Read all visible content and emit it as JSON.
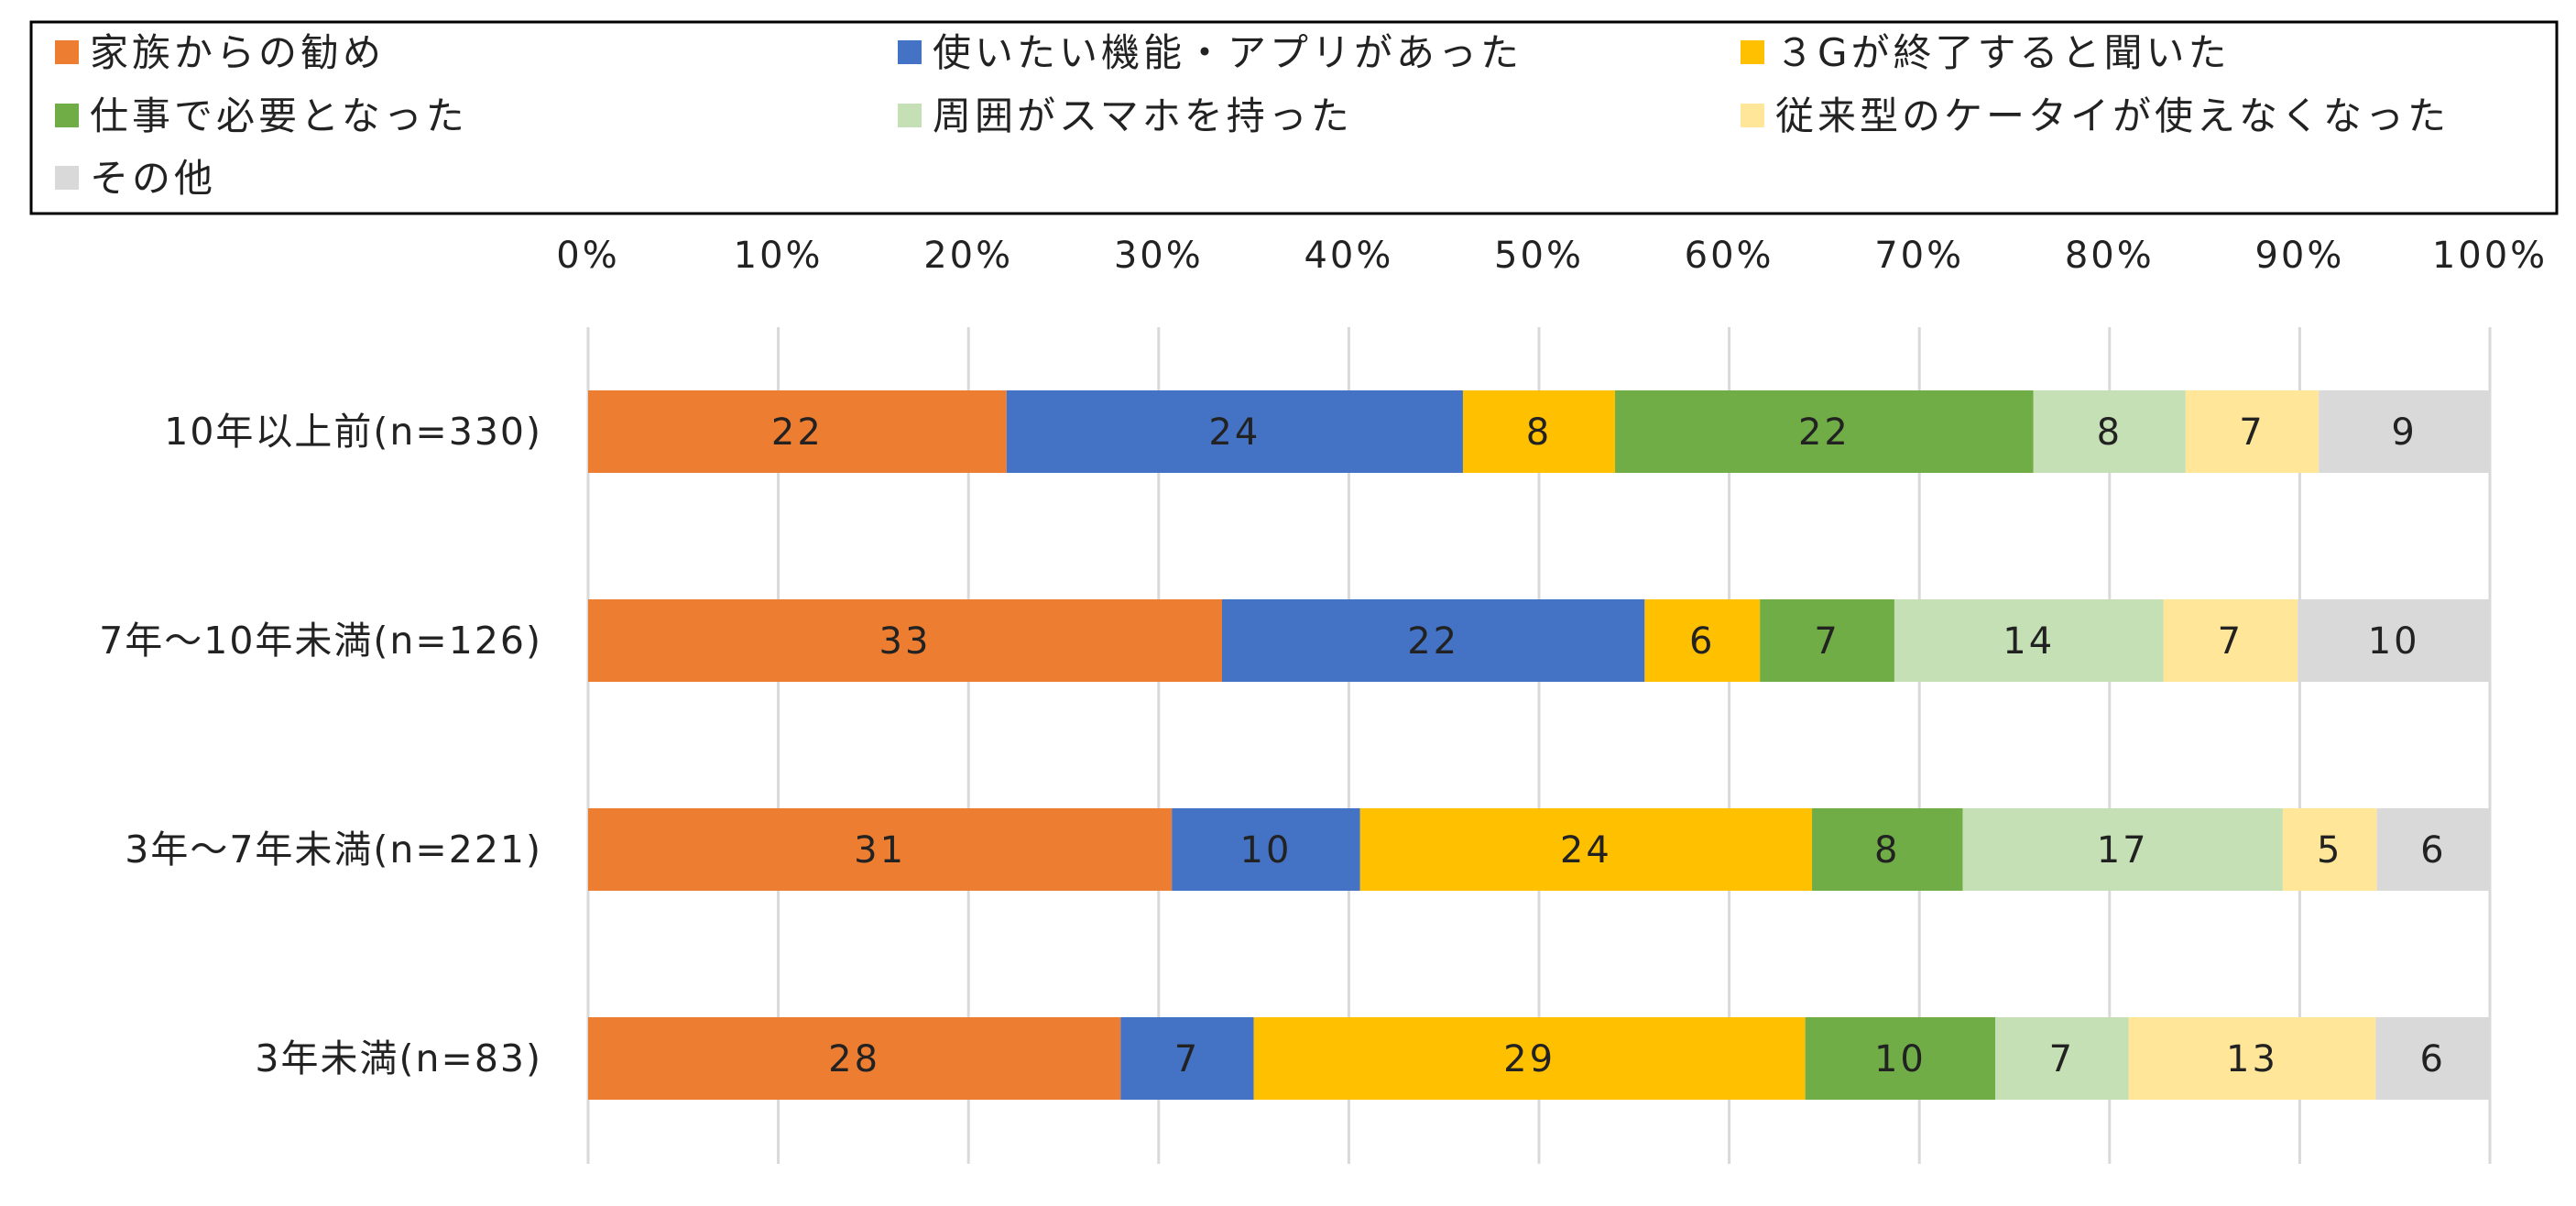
{
  "chart_data": {
    "type": "bar",
    "orientation": "horizontal",
    "stacked": true,
    "percent_stacked": true,
    "categories": [
      "10年以上前(n=330)",
      "7年～10年未満(n=126)",
      "3年～7年未満(n=221)",
      "3年未満(n=83)"
    ],
    "series": [
      {
        "name": "家族からの勧め",
        "color": "#ED7D31",
        "values": [
          22,
          33,
          31,
          28
        ]
      },
      {
        "name": "使いたい機能・アプリがあった",
        "color": "#4472C4",
        "values": [
          24,
          22,
          10,
          7
        ]
      },
      {
        "name": "３Gが終了すると聞いた",
        "color": "#FFC000",
        "values": [
          8,
          6,
          24,
          29
        ]
      },
      {
        "name": "仕事で必要となった",
        "color": "#70AD47",
        "values": [
          22,
          7,
          8,
          10
        ]
      },
      {
        "name": "周囲がスマホを持った",
        "color": "#C5E0B4",
        "values": [
          8,
          14,
          17,
          7
        ]
      },
      {
        "name": "従来型のケータイが使えなくなった",
        "color": "#FFE699",
        "values": [
          7,
          7,
          5,
          13
        ]
      },
      {
        "name": "その他",
        "color": "#D9D9D9",
        "values": [
          9,
          10,
          6,
          6
        ]
      }
    ],
    "x_ticks": [
      "0%",
      "10%",
      "20%",
      "30%",
      "40%",
      "50%",
      "60%",
      "70%",
      "80%",
      "90%",
      "100%"
    ],
    "xlim": [
      0,
      100
    ],
    "axis_position": "top",
    "grid": true,
    "legend_position": "top",
    "data_labels": true
  }
}
